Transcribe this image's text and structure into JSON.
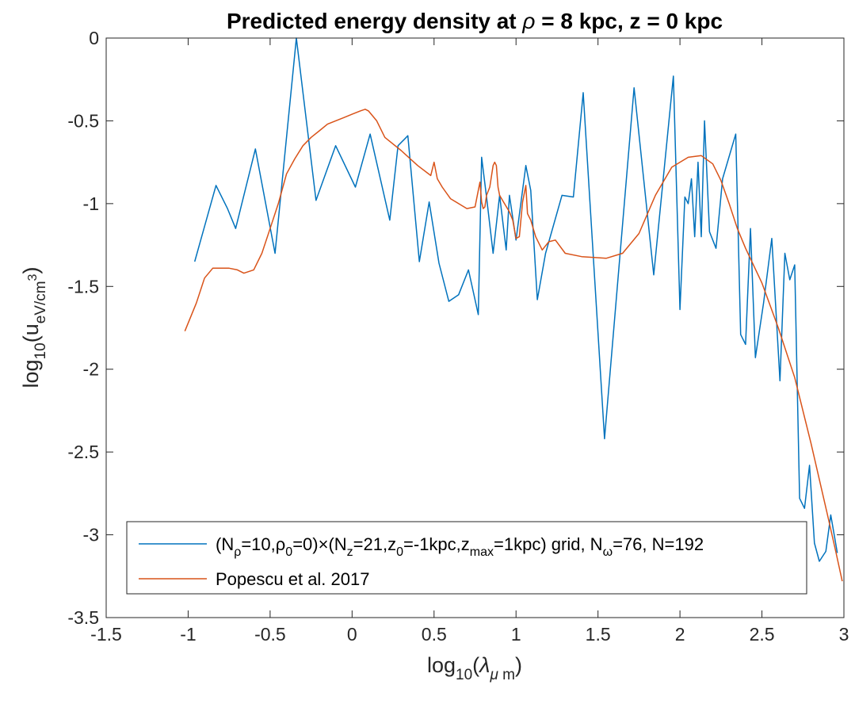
{
  "chart_data": {
    "type": "line",
    "title": {
      "prefix": "Predicted energy density at ",
      "rho_symbol": "ρ",
      "suffix": " = 8 kpc, z = 0 kpc"
    },
    "xlabel": {
      "pre": "log",
      "sub": "10",
      "open": "(",
      "lambda": "λ",
      "sub2_mu": "μ",
      "sub2_m": " m",
      "close": ")"
    },
    "ylabel": {
      "pre": "log",
      "sub": "10",
      "open": "(u",
      "sub2": "eV/cm",
      "sup": "3",
      "close": ")"
    },
    "xlim": [
      -1.5,
      3
    ],
    "ylim": [
      -3.5,
      0
    ],
    "xticks": [
      -1.5,
      -1,
      -0.5,
      0,
      0.5,
      1,
      1.5,
      2,
      2.5,
      3
    ],
    "xtick_labels": [
      "-1.5",
      "-1",
      "-0.5",
      "0",
      "0.5",
      "1",
      "1.5",
      "2",
      "2.5",
      "3"
    ],
    "yticks": [
      -3.5,
      -3,
      -2.5,
      -2,
      -1.5,
      -1,
      -0.5,
      0
    ],
    "ytick_labels": [
      "-3.5",
      "-3",
      "-2.5",
      "-2",
      "-1.5",
      "-1",
      "-0.5",
      "0"
    ],
    "grid": false,
    "legend_position": "bottom-left",
    "series": [
      {
        "color": "#0072BD",
        "legend": {
          "parts": [
            {
              "t": "(N"
            },
            {
              "t": "ρ",
              "sub": true
            },
            {
              "t": "=10,"
            },
            {
              "t": "ρ"
            },
            {
              "t": "0",
              "sub": true
            },
            {
              "t": "=0)×(N"
            },
            {
              "t": "z",
              "sub": true
            },
            {
              "t": "=21,z"
            },
            {
              "t": "0",
              "sub": true
            },
            {
              "t": "=-1kpc,z"
            },
            {
              "t": "max",
              "sub": true
            },
            {
              "t": "=1kpc) grid, N"
            },
            {
              "t": "ω",
              "sub": true
            },
            {
              "t": "=76, N=192"
            }
          ]
        },
        "x": [
          -0.96,
          -0.83,
          -0.76,
          -0.71,
          -0.59,
          -0.47,
          -0.34,
          -0.22,
          -0.1,
          0.02,
          0.11,
          0.23,
          0.28,
          0.34,
          0.41,
          0.47,
          0.53,
          0.59,
          0.65,
          0.71,
          0.77,
          0.79,
          0.82,
          0.86,
          0.9,
          0.94,
          0.96,
          1.0,
          1.06,
          1.09,
          1.13,
          1.18,
          1.28,
          1.35,
          1.41,
          1.54,
          1.72,
          1.84,
          1.96,
          2.0,
          2.03,
          2.05,
          2.07,
          2.09,
          2.11,
          2.13,
          2.15,
          2.18,
          2.22,
          2.26,
          2.34,
          2.37,
          2.4,
          2.43,
          2.46,
          2.51,
          2.56,
          2.61,
          2.64,
          2.67,
          2.7,
          2.73,
          2.76,
          2.79,
          2.82,
          2.85,
          2.89,
          2.92,
          2.96
        ],
        "y": [
          -1.35,
          -0.89,
          -1.03,
          -1.15,
          -0.67,
          -1.3,
          0.0,
          -0.98,
          -0.65,
          -0.9,
          -0.58,
          -1.1,
          -0.65,
          -0.59,
          -1.35,
          -0.99,
          -1.36,
          -1.59,
          -1.55,
          -1.4,
          -1.67,
          -0.72,
          -0.96,
          -1.3,
          -0.95,
          -1.28,
          -0.95,
          -1.22,
          -0.77,
          -0.92,
          -1.58,
          -1.3,
          -0.95,
          -0.96,
          -0.33,
          -2.42,
          -0.3,
          -1.43,
          -0.23,
          -1.64,
          -0.96,
          -1.0,
          -0.85,
          -1.2,
          -0.75,
          -1.2,
          -0.5,
          -1.17,
          -1.27,
          -0.85,
          -0.58,
          -1.79,
          -1.85,
          -1.15,
          -1.93,
          -1.6,
          -1.21,
          -2.07,
          -1.3,
          -1.46,
          -1.37,
          -2.78,
          -2.84,
          -2.58,
          -3.05,
          -3.16,
          -3.1,
          -2.88,
          -3.11
        ]
      },
      {
        "color": "#D95319",
        "legend": {
          "parts": [
            {
              "t": "Popescu et al. 2017"
            }
          ]
        },
        "x": [
          -1.02,
          -0.95,
          -0.9,
          -0.85,
          -0.8,
          -0.75,
          -0.7,
          -0.66,
          -0.6,
          -0.55,
          -0.5,
          -0.45,
          -0.4,
          -0.35,
          -0.3,
          -0.25,
          -0.2,
          -0.15,
          -0.1,
          -0.05,
          0.0,
          0.05,
          0.08,
          0.1,
          0.15,
          0.2,
          0.3,
          0.4,
          0.48,
          0.5,
          0.52,
          0.55,
          0.6,
          0.7,
          0.75,
          0.77,
          0.78,
          0.79,
          0.8,
          0.81,
          0.82,
          0.84,
          0.86,
          0.87,
          0.88,
          0.89,
          0.9,
          0.93,
          0.96,
          0.98,
          1.0,
          1.02,
          1.04,
          1.06,
          1.07,
          1.09,
          1.12,
          1.16,
          1.2,
          1.24,
          1.3,
          1.4,
          1.55,
          1.65,
          1.75,
          1.85,
          1.95,
          2.05,
          2.13,
          2.2,
          2.25,
          2.3,
          2.35,
          2.4,
          2.5,
          2.6,
          2.7,
          2.8,
          2.9,
          2.95,
          2.99
        ],
        "y": [
          -1.77,
          -1.6,
          -1.45,
          -1.39,
          -1.39,
          -1.39,
          -1.4,
          -1.42,
          -1.4,
          -1.3,
          -1.15,
          -1.0,
          -0.82,
          -0.73,
          -0.65,
          -0.6,
          -0.56,
          -0.52,
          -0.5,
          -0.48,
          -0.46,
          -0.44,
          -0.43,
          -0.44,
          -0.5,
          -0.6,
          -0.68,
          -0.77,
          -0.83,
          -0.75,
          -0.85,
          -0.9,
          -0.97,
          -1.03,
          -1.02,
          -0.92,
          -0.87,
          -0.99,
          -1.03,
          -1.02,
          -0.95,
          -0.9,
          -0.77,
          -0.75,
          -0.77,
          -0.9,
          -0.95,
          -1.0,
          -1.05,
          -1.1,
          -1.21,
          -1.2,
          -0.99,
          -0.89,
          -1.06,
          -1.1,
          -1.2,
          -1.28,
          -1.23,
          -1.22,
          -1.3,
          -1.32,
          -1.33,
          -1.3,
          -1.18,
          -0.95,
          -0.78,
          -0.72,
          -0.71,
          -0.76,
          -0.86,
          -1.0,
          -1.15,
          -1.27,
          -1.48,
          -1.75,
          -2.05,
          -2.45,
          -2.88,
          -3.1,
          -3.28
        ]
      }
    ]
  }
}
